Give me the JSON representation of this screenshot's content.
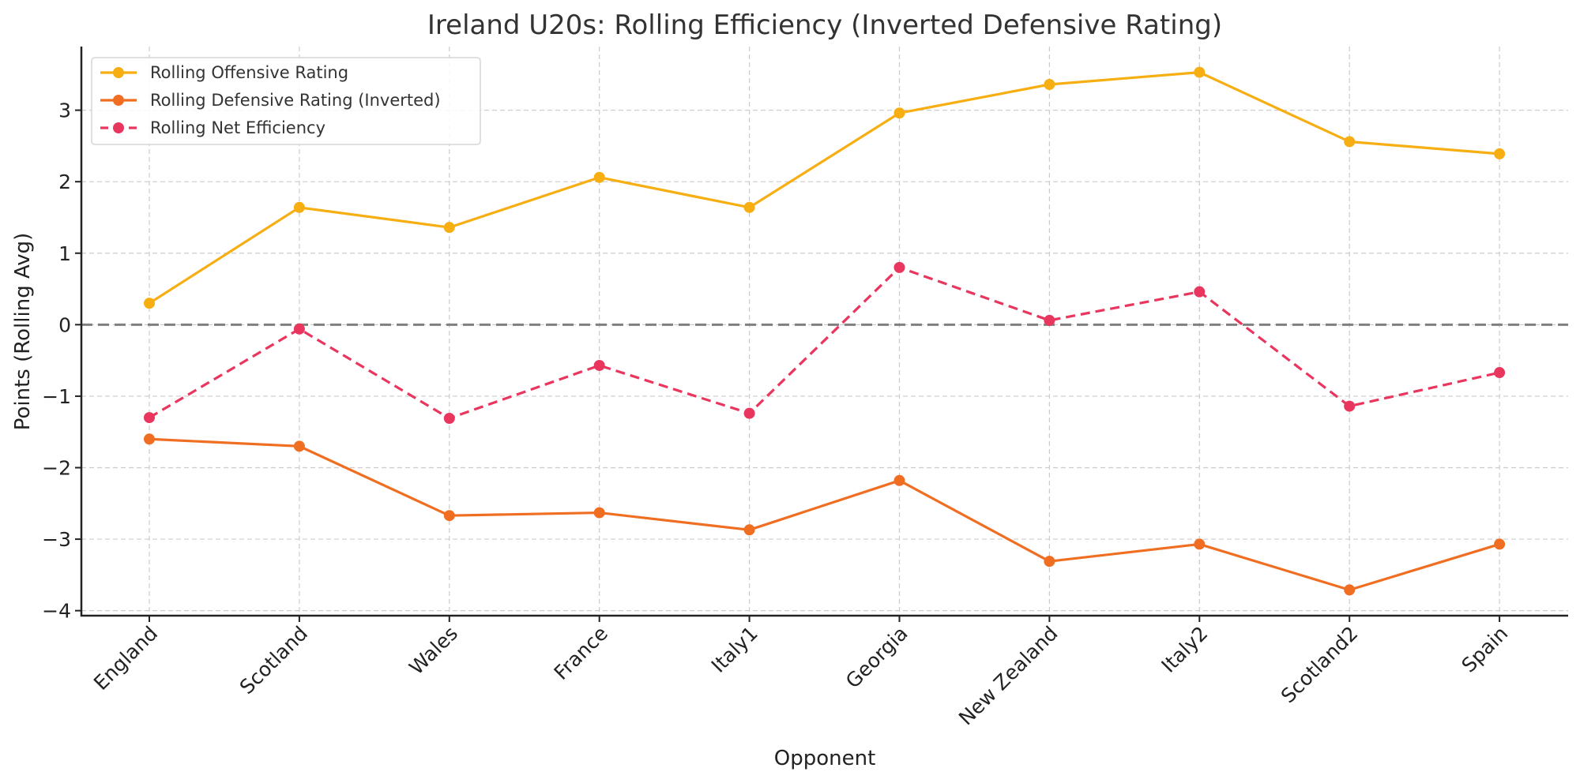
{
  "chart_data": {
    "type": "line",
    "title": "Ireland U20s: Rolling Efficiency (Inverted Defensive Rating)",
    "xlabel": "Opponent",
    "ylabel": "Points (Rolling Avg)",
    "categories": [
      "England",
      "Scotland",
      "Wales",
      "France",
      "Italy1",
      "Georgia",
      "New Zealand",
      "Italy2",
      "Scotland2",
      "Spain"
    ],
    "ylim": [
      -4.07,
      3.89
    ],
    "yticks": [
      -4,
      -3,
      -2,
      -1,
      0,
      1,
      2,
      3
    ],
    "ytick_labels": [
      "−4",
      "−3",
      "−2",
      "−1",
      "0",
      "1",
      "2",
      "3"
    ],
    "grid": true,
    "legend_position": "top-left",
    "reference_line": {
      "y": 0,
      "style": "dashed",
      "color": "#808080"
    },
    "series": [
      {
        "name": "Rolling Offensive Rating",
        "color": "#F7AE12",
        "style": "solid",
        "marker": "circle",
        "values": [
          0.3,
          1.64,
          1.36,
          2.06,
          1.64,
          2.96,
          3.36,
          3.53,
          2.56,
          2.39
        ]
      },
      {
        "name": "Rolling Defensive Rating (Inverted)",
        "color": "#F06E22",
        "style": "solid",
        "marker": "circle",
        "values": [
          -1.6,
          -1.7,
          -2.67,
          -2.63,
          -2.87,
          -2.18,
          -3.31,
          -3.07,
          -3.71,
          -3.07
        ]
      },
      {
        "name": "Rolling Net Efficiency",
        "color": "#E9365E",
        "style": "dashed",
        "marker": "circle",
        "values": [
          -1.3,
          -0.06,
          -1.31,
          -0.57,
          -1.24,
          0.8,
          0.06,
          0.46,
          -1.14,
          -0.67
        ]
      }
    ]
  }
}
